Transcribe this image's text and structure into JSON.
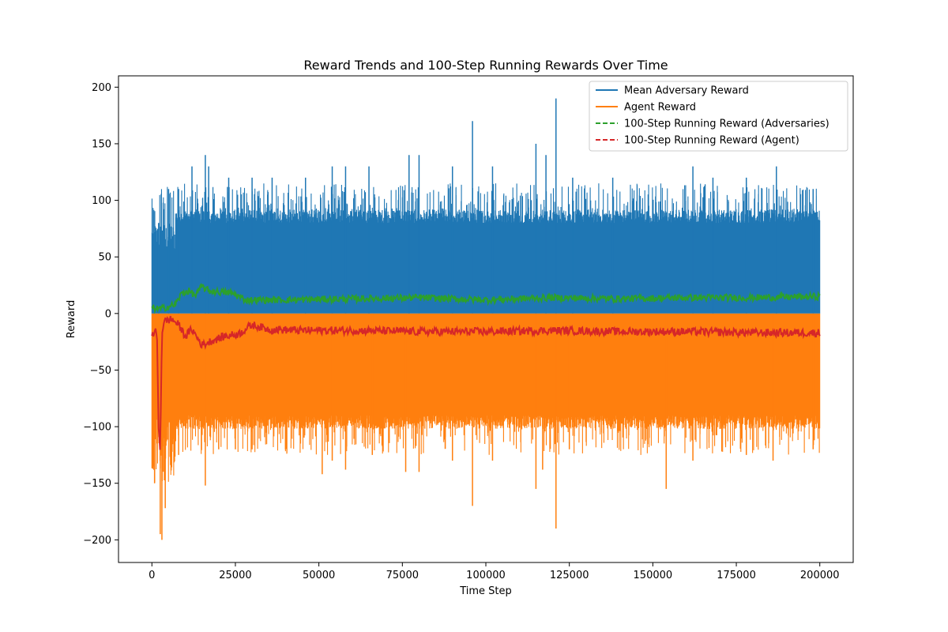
{
  "chart_data": {
    "type": "line",
    "title": "Reward Trends and 100-Step Running Rewards Over Time",
    "xlabel": "Time Step",
    "ylabel": "Reward",
    "xlim": [
      -10000,
      210000
    ],
    "ylim": [
      -220,
      210
    ],
    "xticks": [
      0,
      25000,
      50000,
      75000,
      100000,
      125000,
      150000,
      175000,
      200000
    ],
    "yticks": [
      -200,
      -150,
      -100,
      -50,
      0,
      50,
      100,
      150,
      200
    ],
    "grid": false,
    "legend_position": "top-right",
    "series": [
      {
        "name": "Mean Adversary Reward",
        "color": "#1f77b4",
        "style": "solid",
        "x_range": [
          0,
          200000
        ],
        "typical_low": 0,
        "typical_high": 90,
        "peaks": [
          {
            "x": 500,
            "y": 60
          },
          {
            "x": 2000,
            "y": 80
          },
          {
            "x": 5000,
            "y": 110
          },
          {
            "x": 8000,
            "y": 110
          },
          {
            "x": 12000,
            "y": 130
          },
          {
            "x": 16000,
            "y": 140
          },
          {
            "x": 17000,
            "y": 130
          },
          {
            "x": 23000,
            "y": 120
          },
          {
            "x": 30000,
            "y": 120
          },
          {
            "x": 36000,
            "y": 120
          },
          {
            "x": 46000,
            "y": 120
          },
          {
            "x": 54000,
            "y": 130
          },
          {
            "x": 58000,
            "y": 130
          },
          {
            "x": 65000,
            "y": 130
          },
          {
            "x": 77000,
            "y": 140
          },
          {
            "x": 80000,
            "y": 140
          },
          {
            "x": 90000,
            "y": 130
          },
          {
            "x": 96000,
            "y": 170
          },
          {
            "x": 102000,
            "y": 130
          },
          {
            "x": 115000,
            "y": 150
          },
          {
            "x": 118000,
            "y": 140
          },
          {
            "x": 121000,
            "y": 190
          },
          {
            "x": 126000,
            "y": 120
          },
          {
            "x": 138000,
            "y": 120
          },
          {
            "x": 162000,
            "y": 130
          },
          {
            "x": 168000,
            "y": 120
          },
          {
            "x": 178000,
            "y": 120
          },
          {
            "x": 187000,
            "y": 130
          },
          {
            "x": 198000,
            "y": 110
          }
        ]
      },
      {
        "name": "Agent Reward",
        "color": "#ff7f0e",
        "style": "solid",
        "x_range": [
          0,
          200000
        ],
        "typical_low": -90,
        "typical_high": 0,
        "troughs": [
          {
            "x": 800,
            "y": -150
          },
          {
            "x": 2500,
            "y": -195
          },
          {
            "x": 3000,
            "y": -200
          },
          {
            "x": 4000,
            "y": -172
          },
          {
            "x": 8000,
            "y": -125
          },
          {
            "x": 16000,
            "y": -152
          },
          {
            "x": 20000,
            "y": -120
          },
          {
            "x": 25000,
            "y": -120
          },
          {
            "x": 30000,
            "y": -120
          },
          {
            "x": 40000,
            "y": -120
          },
          {
            "x": 51000,
            "y": -142
          },
          {
            "x": 54000,
            "y": -130
          },
          {
            "x": 58000,
            "y": -138
          },
          {
            "x": 66000,
            "y": -125
          },
          {
            "x": 76000,
            "y": -140
          },
          {
            "x": 80000,
            "y": -140
          },
          {
            "x": 90000,
            "y": -130
          },
          {
            "x": 96000,
            "y": -170
          },
          {
            "x": 102000,
            "y": -130
          },
          {
            "x": 115000,
            "y": -155
          },
          {
            "x": 117000,
            "y": -138
          },
          {
            "x": 121000,
            "y": -190
          },
          {
            "x": 125000,
            "y": -120
          },
          {
            "x": 154000,
            "y": -155
          },
          {
            "x": 162000,
            "y": -130
          },
          {
            "x": 178000,
            "y": -125
          },
          {
            "x": 186000,
            "y": -130
          },
          {
            "x": 198000,
            "y": -120
          }
        ]
      },
      {
        "name": "100-Step Running Reward (Adversaries)",
        "color": "#2ca02c",
        "style": "dashed",
        "x": [
          0,
          2500,
          5000,
          7000,
          9000,
          11000,
          13000,
          15000,
          17000,
          20000,
          24000,
          28000,
          32000,
          40000,
          60000,
          80000,
          100000,
          120000,
          140000,
          160000,
          180000,
          200000
        ],
        "y": [
          5,
          4,
          6,
          8,
          18,
          20,
          16,
          24,
          20,
          19,
          18,
          12,
          12,
          12,
          13,
          14,
          12,
          14,
          13,
          14,
          14,
          15
        ]
      },
      {
        "name": "100-Step Running Reward (Agent)",
        "color": "#d62728",
        "style": "dashed",
        "x": [
          0,
          1500,
          2000,
          2500,
          3000,
          3500,
          4500,
          6000,
          8000,
          10000,
          12000,
          15000,
          18000,
          22000,
          26000,
          30000,
          35000,
          45000,
          60000,
          80000,
          100000,
          120000,
          140000,
          160000,
          180000,
          200000
        ],
        "y": [
          -18,
          -16,
          -100,
          -120,
          -18,
          -8,
          -6,
          -5,
          -10,
          -20,
          -14,
          -28,
          -24,
          -20,
          -18,
          -10,
          -14,
          -15,
          -15,
          -16,
          -16,
          -15,
          -16,
          -16,
          -17,
          -17
        ]
      }
    ]
  }
}
